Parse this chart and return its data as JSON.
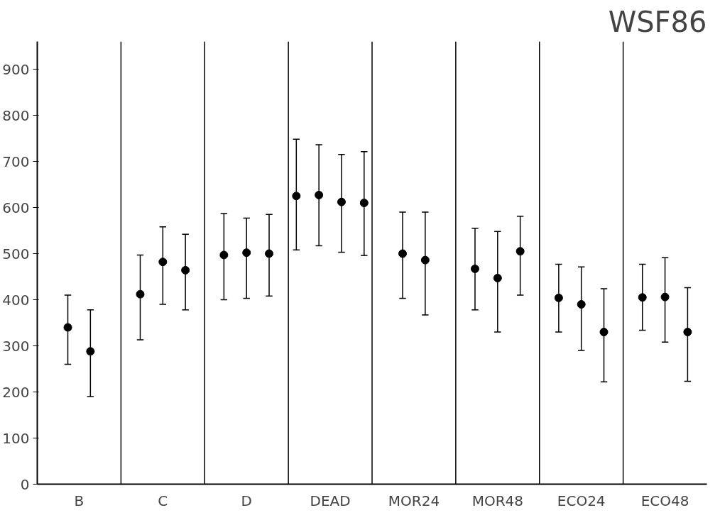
{
  "chart_data": {
    "type": "scatter",
    "title": "WSF86",
    "categories": [
      "B",
      "C",
      "D",
      "DEAD",
      "MOR24",
      "MOR48",
      "ECO24",
      "ECO48"
    ],
    "series": [
      {
        "color": "#000000",
        "values": [
          340,
          412,
          497,
          625,
          500,
          467,
          404,
          405
        ],
        "errors": [
          [
            260,
            410
          ],
          [
            313,
            497
          ],
          [
            400,
            587
          ],
          [
            508,
            748
          ],
          [
            403,
            590
          ],
          [
            378,
            555
          ],
          [
            330,
            477
          ],
          [
            334,
            477
          ]
        ]
      },
      {
        "color": "#000000",
        "values": [
          288,
          482,
          502,
          627,
          486,
          447,
          390,
          406
        ],
        "errors": [
          [
            190,
            378
          ],
          [
            390,
            558
          ],
          [
            403,
            577
          ],
          [
            517,
            736
          ],
          [
            367,
            590
          ],
          [
            330,
            548
          ],
          [
            290,
            471
          ],
          [
            308,
            491
          ]
        ]
      },
      {
        "color": "#000000",
        "values": [
          null,
          464,
          500,
          612,
          null,
          505,
          330,
          330
        ],
        "errors": [
          null,
          [
            378,
            542
          ],
          [
            408,
            585
          ],
          [
            503,
            715
          ],
          null,
          [
            410,
            581
          ],
          [
            222,
            424
          ],
          [
            223,
            426
          ]
        ]
      },
      {
        "color": "#000000",
        "values": [
          null,
          null,
          null,
          610,
          null,
          null,
          null,
          null
        ],
        "errors": [
          null,
          null,
          null,
          [
            496,
            721
          ],
          null,
          null,
          null,
          null
        ]
      }
    ],
    "marker": "circle",
    "grid": "x",
    "ylim": [
      0,
      960
    ],
    "yticks": [
      0,
      100,
      200,
      300,
      400,
      500,
      600,
      700,
      800,
      900
    ]
  }
}
